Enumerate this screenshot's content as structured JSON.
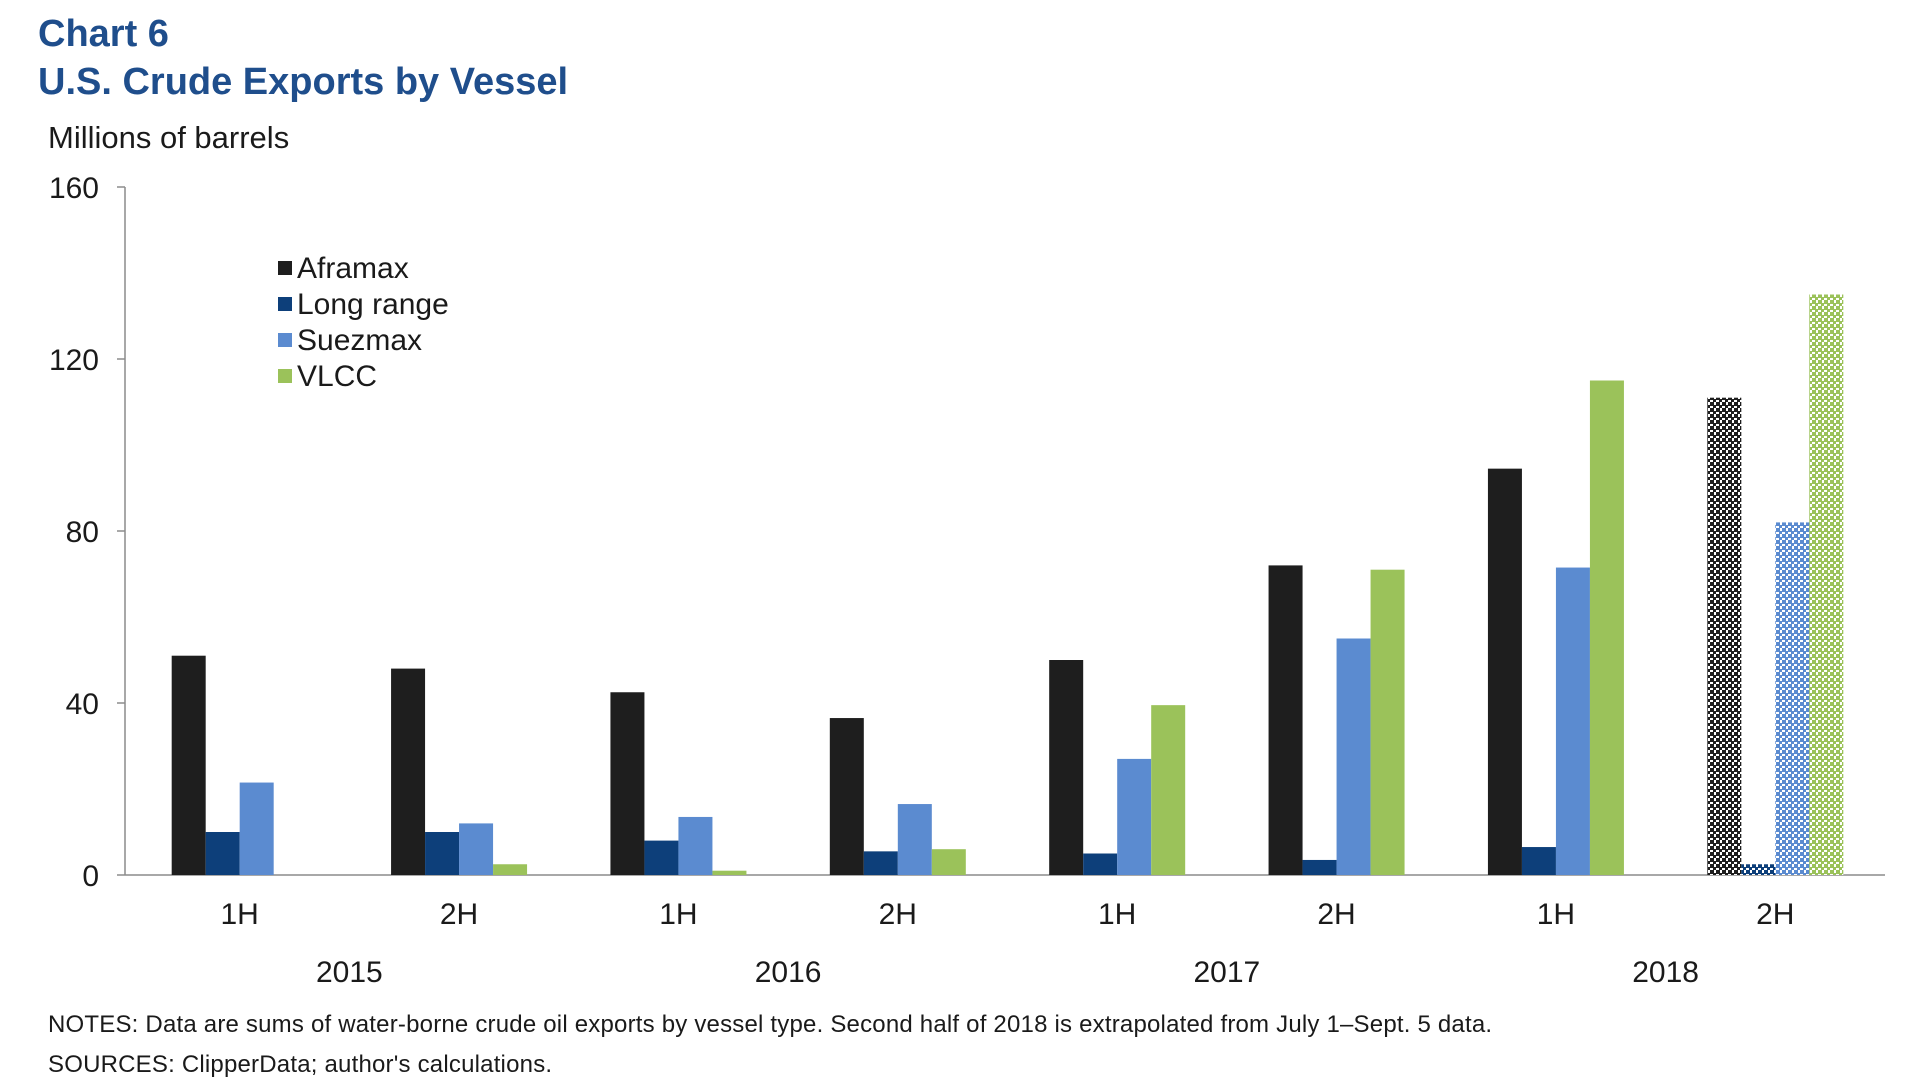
{
  "header": {
    "chart_number": "Chart 6",
    "title": "U.S. Crude Exports by Vessel"
  },
  "footer": {
    "notes": "NOTES: Data are sums of water-borne crude oil exports by vessel type. Second half of 2018 is extrapolated from July 1–Sept. 5 data.",
    "sources": "SOURCES: ClipperData; author's calculations."
  },
  "chart_data": {
    "type": "bar",
    "title": "U.S. Crude Exports by Vessel",
    "ylabel": "Millions of barrels",
    "xlabel": "",
    "ylim": [
      0,
      160
    ],
    "yticks": [
      0,
      40,
      80,
      120,
      160
    ],
    "categories": [
      "1H",
      "2H",
      "1H",
      "2H",
      "1H",
      "2H",
      "1H",
      "2H"
    ],
    "years": [
      {
        "label": "2015",
        "span": [
          0,
          1
        ]
      },
      {
        "label": "2016",
        "span": [
          2,
          3
        ]
      },
      {
        "label": "2017",
        "span": [
          4,
          5
        ]
      },
      {
        "label": "2018",
        "span": [
          6,
          7
        ]
      }
    ],
    "extrapolated_category_index": 7,
    "legend_position": "upper-left",
    "grid": false,
    "series": [
      {
        "name": "Aframax",
        "color": "#1e1e1e",
        "values": [
          51,
          48,
          42.5,
          36.5,
          50,
          72,
          94.5,
          111
        ]
      },
      {
        "name": "Long range",
        "color": "#0d3f7a",
        "values": [
          10,
          10,
          8,
          5.5,
          5,
          3.5,
          6.5,
          2.5
        ]
      },
      {
        "name": "Suezmax",
        "color": "#5b8bd0",
        "values": [
          21.5,
          12,
          13.5,
          16.5,
          27,
          55,
          71.5,
          82
        ]
      },
      {
        "name": "VLCC",
        "color": "#9bc25a",
        "values": [
          0,
          2.5,
          1,
          6,
          39.5,
          71,
          115,
          135
        ]
      }
    ]
  }
}
